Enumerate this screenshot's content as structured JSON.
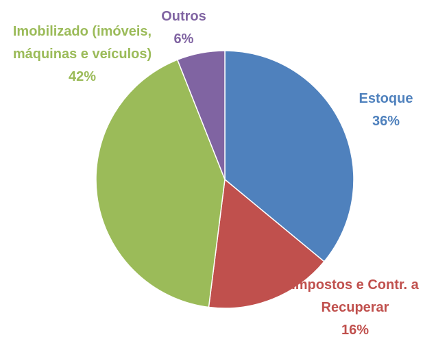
{
  "chart_data": {
    "type": "pie",
    "categories": [
      "Estoque",
      "Impostos e Contr. a Recuperar",
      "Imobilizado (imóveis, máquinas e veículos)",
      "Outros"
    ],
    "values": [
      36,
      16,
      42,
      6
    ],
    "value_labels": [
      "36%",
      "16%",
      "42%",
      "6%"
    ],
    "colors": [
      "#4f81bd",
      "#c0504d",
      "#9bbb59",
      "#8064a2"
    ]
  }
}
